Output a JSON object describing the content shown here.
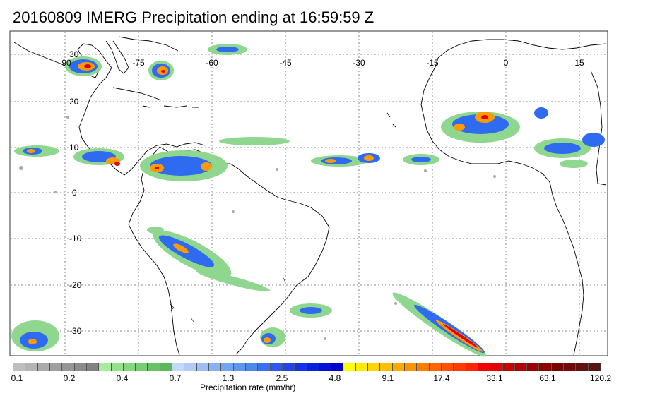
{
  "title": "20160809 IMERG Precipitation ending at 16:59:59 Z",
  "map": {
    "longitude_labels": [
      "-90",
      "-75",
      "-60",
      "-45",
      "-30",
      "-15",
      "0",
      "15"
    ],
    "latitude_labels": [
      "30",
      "20",
      "10",
      "0",
      "-10",
      "-20",
      "-30"
    ],
    "background_color": "#ffffff",
    "coastline_color": "#000000",
    "gridline_style": "dotted",
    "precip_colors": {
      "light_green": "#8fd68f",
      "gray": "#aaaaaa",
      "light_blue": "#8fc1f2",
      "blue": "#2f6bf0",
      "dark_blue": "#0000c8",
      "yellow": "#ffff00",
      "orange": "#ff9a00",
      "red": "#e00000",
      "dark_red": "#700000"
    }
  },
  "colorbar": {
    "title": "Precipitation rate (mm/hr)",
    "tick_labels": [
      "0.1",
      "0.2",
      "0.4",
      "0.7",
      "1.3",
      "2.5",
      "4.8",
      "9.1",
      "17.4",
      "33.1",
      "63.1",
      "120.2"
    ],
    "colors": [
      "#bebebe",
      "#b4b4b4",
      "#aaaaaa",
      "#a0a0a0",
      "#969696",
      "#8c8c8c",
      "#828282",
      "#a6ec9c",
      "#96e08c",
      "#86d67e",
      "#78cc72",
      "#6ac266",
      "#5cb85a",
      "#c4d8fa",
      "#b0cbf7",
      "#9cbef4",
      "#88b1f1",
      "#74a4ee",
      "#6097eb",
      "#4c8ae8",
      "#3a6ff0",
      "#2e58f0",
      "#2244f0",
      "#1632e8",
      "#0a20e0",
      "#0010d6",
      "#0000c8",
      "#ffff00",
      "#ffea00",
      "#ffd400",
      "#ffbe00",
      "#ffa800",
      "#ff9200",
      "#ff7c00",
      "#ff6600",
      "#ff5000",
      "#ff3a00",
      "#ff2400",
      "#f00000",
      "#e00000",
      "#c80000",
      "#b40000",
      "#a00000",
      "#8c0000",
      "#780000",
      "#6e0a0a",
      "#641010",
      "#5a1414"
    ]
  }
}
